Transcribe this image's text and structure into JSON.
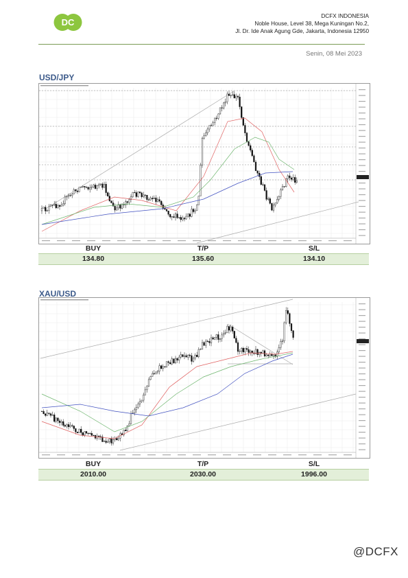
{
  "header": {
    "company_name": "DCFX INDONESIA",
    "address_line1": "Noble House, Level 38, Mega Kuningan No.2,",
    "address_line2": "Jl. Dr. Ide Anak Agung Gde, Jakarta, Indonesia 12950",
    "logo_text": "DC",
    "date": "Senin, 08 Mei 2023"
  },
  "colors": {
    "brand_green": "#8dc63f",
    "heading_blue": "#3c5a8a",
    "row_fill": "#e3efd9"
  },
  "sections": [
    {
      "symbol": "USD/JPY",
      "labels": {
        "buy": "BUY",
        "tp": "T/P",
        "sl": "S/L"
      },
      "values": {
        "buy": "134.80",
        "tp": "135.60",
        "sl": "134.10"
      }
    },
    {
      "symbol": "XAU/USD",
      "labels": {
        "buy": "BUY",
        "tp": "T/P",
        "sl": "S/L"
      },
      "values": {
        "buy": "2010.00",
        "tp": "2030.00",
        "sl": "1996.00"
      }
    }
  ],
  "watermark": "@DCFX"
}
